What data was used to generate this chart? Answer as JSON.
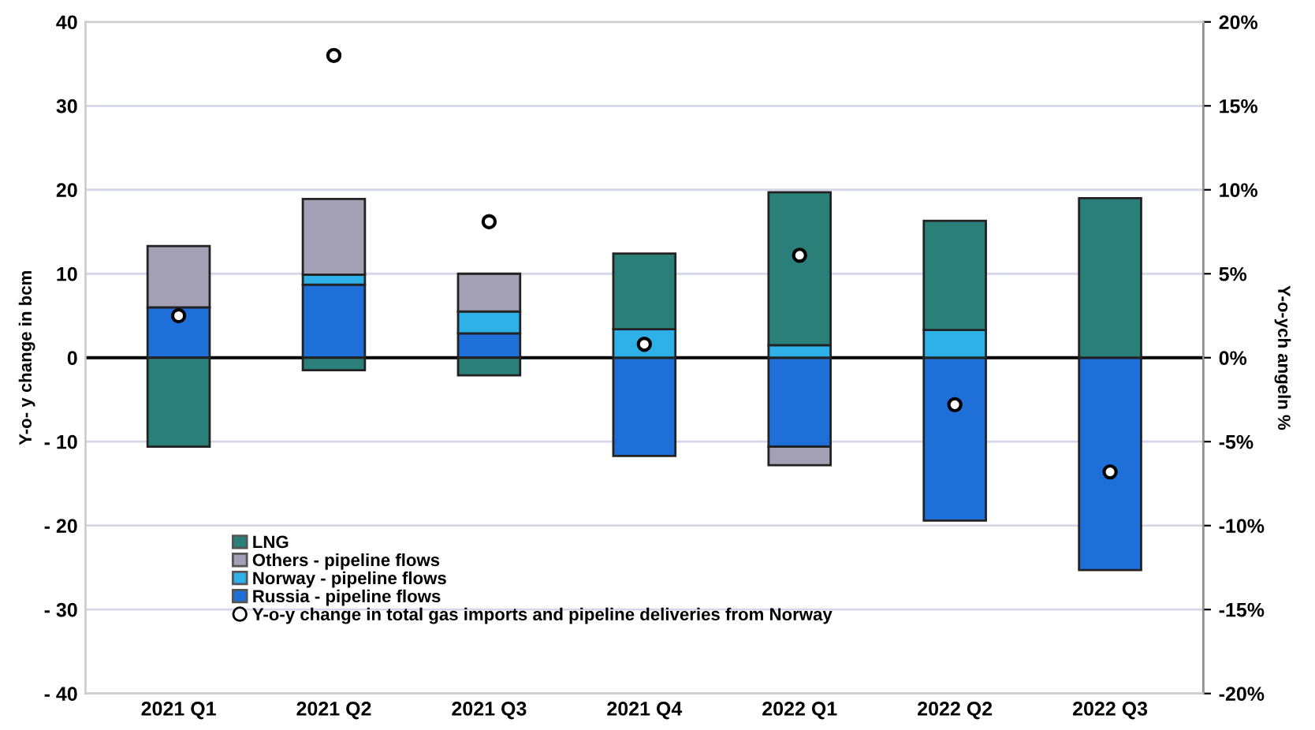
{
  "chart_data": {
    "type": "bar",
    "stacked": true,
    "categories": [
      "2021 Q1",
      "2021 Q2",
      "2021 Q3",
      "2021 Q4",
      "2022 Q1",
      "2022 Q2",
      "2022 Q3"
    ],
    "ylabel": "Y-o- y change in bcm",
    "y2label": "Y-o-ych angeln %",
    "ylim": [
      -40,
      40
    ],
    "yticks": [
      {
        "value": -40,
        "label": "- 40"
      },
      {
        "value": -30,
        "label": "- 30"
      },
      {
        "value": -20,
        "label": "- 20"
      },
      {
        "value": -10,
        "label": "- 10"
      },
      0,
      10,
      20,
      30,
      40
    ],
    "y2lim": [
      -20,
      20
    ],
    "y2ticks": [
      {
        "value": -20,
        "label": "-20%"
      },
      {
        "value": -15,
        "label": "-15%"
      },
      {
        "value": -10,
        "label": "-10%"
      },
      {
        "value": -5,
        "label": "-5%"
      },
      {
        "value": 0,
        "label": "0%"
      },
      {
        "value": 5,
        "label": "5%"
      },
      {
        "value": 10,
        "label": "10%"
      },
      {
        "value": 15,
        "label": "15%"
      },
      {
        "value": 20,
        "label": "20%"
      }
    ],
    "grid": "y",
    "legend": "bottom",
    "series": [
      {
        "name": "Russia - pipeline flows",
        "color": "#1f6fd8",
        "values": [
          6.0,
          8.7,
          2.9,
          -11.7,
          -10.6,
          -19.4,
          -25.3
        ]
      },
      {
        "name": "Norway - pipeline flows",
        "color": "#2eb0e8",
        "values": [
          null,
          1.2,
          2.6,
          3.4,
          1.5,
          3.3,
          null
        ]
      },
      {
        "name": "Others - pipeline flows",
        "color": "#a39fb5",
        "values": [
          7.3,
          9.0,
          4.5,
          null,
          -2.2,
          null,
          null
        ]
      },
      {
        "name": "LNG",
        "color": "#2a7f78",
        "values": [
          -10.6,
          -1.5,
          -2.1,
          9.0,
          18.2,
          13.0,
          19.0
        ]
      },
      {
        "name": "Y-o-y change in total gas imports and pipeline deliveries from Norway",
        "type": "scatter",
        "axis": "y2",
        "marker": "circle",
        "color": "#ffffff",
        "values": [
          2.5,
          18.0,
          8.1,
          0.8,
          6.1,
          -2.8,
          -6.8
        ]
      }
    ]
  }
}
